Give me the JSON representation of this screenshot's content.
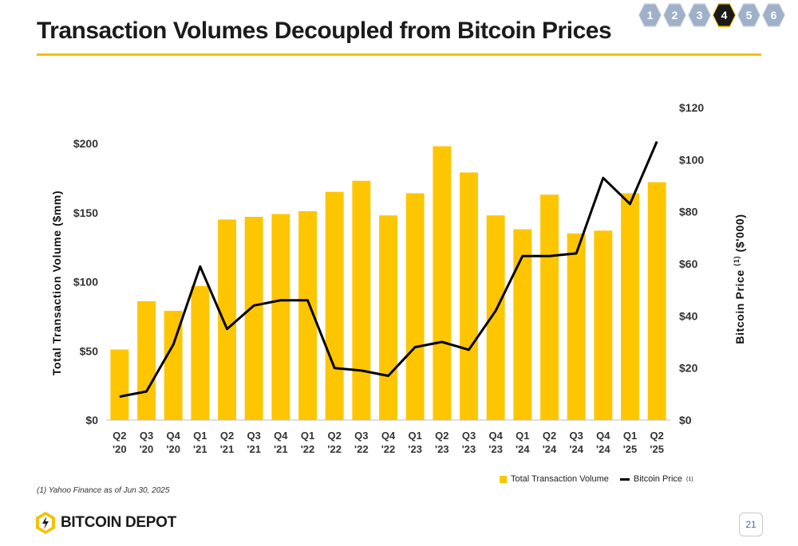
{
  "page": {
    "title": "Transaction Volumes Decoupled from Bitcoin Prices",
    "footnote": "(1)  Yahoo Finance as of Jun 30, 2025",
    "page_number": "21",
    "logo_text": "BITCOIN DEPOT",
    "accent_color": "#f3c200",
    "nav": [
      "1",
      "2",
      "3",
      "4",
      "5",
      "6"
    ],
    "nav_active": "4"
  },
  "legend": {
    "bar_label": "Total Transaction Volume",
    "line_label": "Bitcoin Price",
    "line_sup": "(1)"
  },
  "chart_data": {
    "type": "bar+line",
    "categories": [
      [
        "Q2",
        "'20"
      ],
      [
        "Q3",
        "'20"
      ],
      [
        "Q4",
        "'20"
      ],
      [
        "Q1",
        "'21"
      ],
      [
        "Q2",
        "'21"
      ],
      [
        "Q3",
        "'21"
      ],
      [
        "Q4",
        "'21"
      ],
      [
        "Q1",
        "'22"
      ],
      [
        "Q2",
        "'22"
      ],
      [
        "Q3",
        "'22"
      ],
      [
        "Q4",
        "'22"
      ],
      [
        "Q1",
        "'23"
      ],
      [
        "Q2",
        "'23"
      ],
      [
        "Q3",
        "'23"
      ],
      [
        "Q4",
        "'23"
      ],
      [
        "Q1",
        "'24"
      ],
      [
        "Q2",
        "'24"
      ],
      [
        "Q3",
        "'24"
      ],
      [
        "Q4",
        "'24"
      ],
      [
        "Q1",
        "'25"
      ],
      [
        "Q2",
        "'25"
      ]
    ],
    "series": [
      {
        "name": "Total Transaction Volume",
        "kind": "bar",
        "axis": "left",
        "color": "#fec600",
        "values": [
          51,
          86,
          79,
          97,
          145,
          147,
          149,
          151,
          165,
          173,
          148,
          164,
          198,
          179,
          148,
          138,
          163,
          135,
          137,
          164,
          172
        ]
      },
      {
        "name": "Bitcoin Price",
        "kind": "line",
        "axis": "right",
        "color": "#000000",
        "values": [
          9,
          11,
          29,
          59,
          35,
          44,
          46,
          46,
          20,
          19,
          17,
          28,
          30,
          27,
          42,
          63,
          63,
          64,
          93,
          83,
          107
        ]
      }
    ],
    "left_axis": {
      "label": "Total Transaction Volume ($mm)",
      "ticks": [
        0,
        50,
        100,
        150,
        200
      ],
      "tick_labels": [
        "$0",
        "$50",
        "$100",
        "$150",
        "$200"
      ],
      "range": [
        0,
        200
      ]
    },
    "right_axis": {
      "label": "Bitcoin Price",
      "label_sup": "(1)",
      "label_unit": "($'000)",
      "ticks": [
        0,
        20,
        40,
        60,
        80,
        100,
        120
      ],
      "tick_labels": [
        "$0",
        "$20",
        "$40",
        "$60",
        "$80",
        "$100",
        "$120"
      ],
      "range": [
        0,
        120
      ]
    },
    "grid": false,
    "legend_position": "bottom-right"
  }
}
